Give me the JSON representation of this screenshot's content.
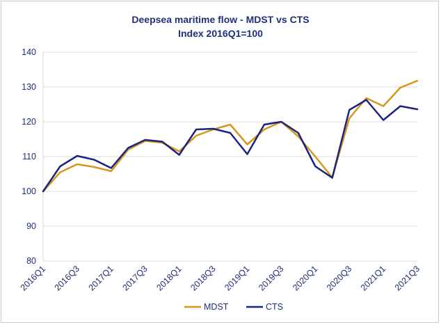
{
  "chart_data": {
    "type": "line",
    "title": "Deepsea maritime flow - MDST vs CTS",
    "subtitle": "Index 2016Q1=100",
    "xlabel": "",
    "ylabel": "",
    "ylim": [
      80,
      140
    ],
    "yticks": [
      80,
      90,
      100,
      110,
      120,
      130,
      140
    ],
    "grid": true,
    "legend": "bottom",
    "categories": [
      "2016Q1",
      "2016Q2",
      "2016Q3",
      "2016Q4",
      "2017Q1",
      "2017Q2",
      "2017Q3",
      "2017Q4",
      "2018Q1",
      "2018Q2",
      "2018Q3",
      "2018Q4",
      "2019Q1",
      "2019Q2",
      "2019Q3",
      "2019Q4",
      "2020Q1",
      "2020Q2",
      "2020Q3",
      "2020Q4",
      "2021Q1",
      "2021Q2",
      "2021Q3"
    ],
    "tick_labels": [
      "2016Q1",
      "2016Q3",
      "2017Q1",
      "2017Q3",
      "2018Q1",
      "2018Q3",
      "2019Q1",
      "2019Q3",
      "2020Q1",
      "2020Q3",
      "2021Q1",
      "2021Q3"
    ],
    "series": [
      {
        "name": "MDST",
        "color": "#d4961c",
        "values": [
          100,
          105.5,
          107.8,
          107,
          105.8,
          112,
          114.5,
          114,
          111.5,
          116,
          117.8,
          119.2,
          113.5,
          117.8,
          120,
          115.8,
          110,
          104,
          121,
          126.8,
          124.5,
          129.8,
          131.8
        ]
      },
      {
        "name": "CTS",
        "color": "#1a237e",
        "values": [
          100,
          107.2,
          110.2,
          109.1,
          106.7,
          112.5,
          114.8,
          114.3,
          110.5,
          117.8,
          118,
          116.8,
          110.7,
          119.2,
          120,
          116.8,
          107.2,
          103.9,
          123.4,
          126.3,
          120.5,
          124.5,
          123.6
        ]
      }
    ]
  }
}
